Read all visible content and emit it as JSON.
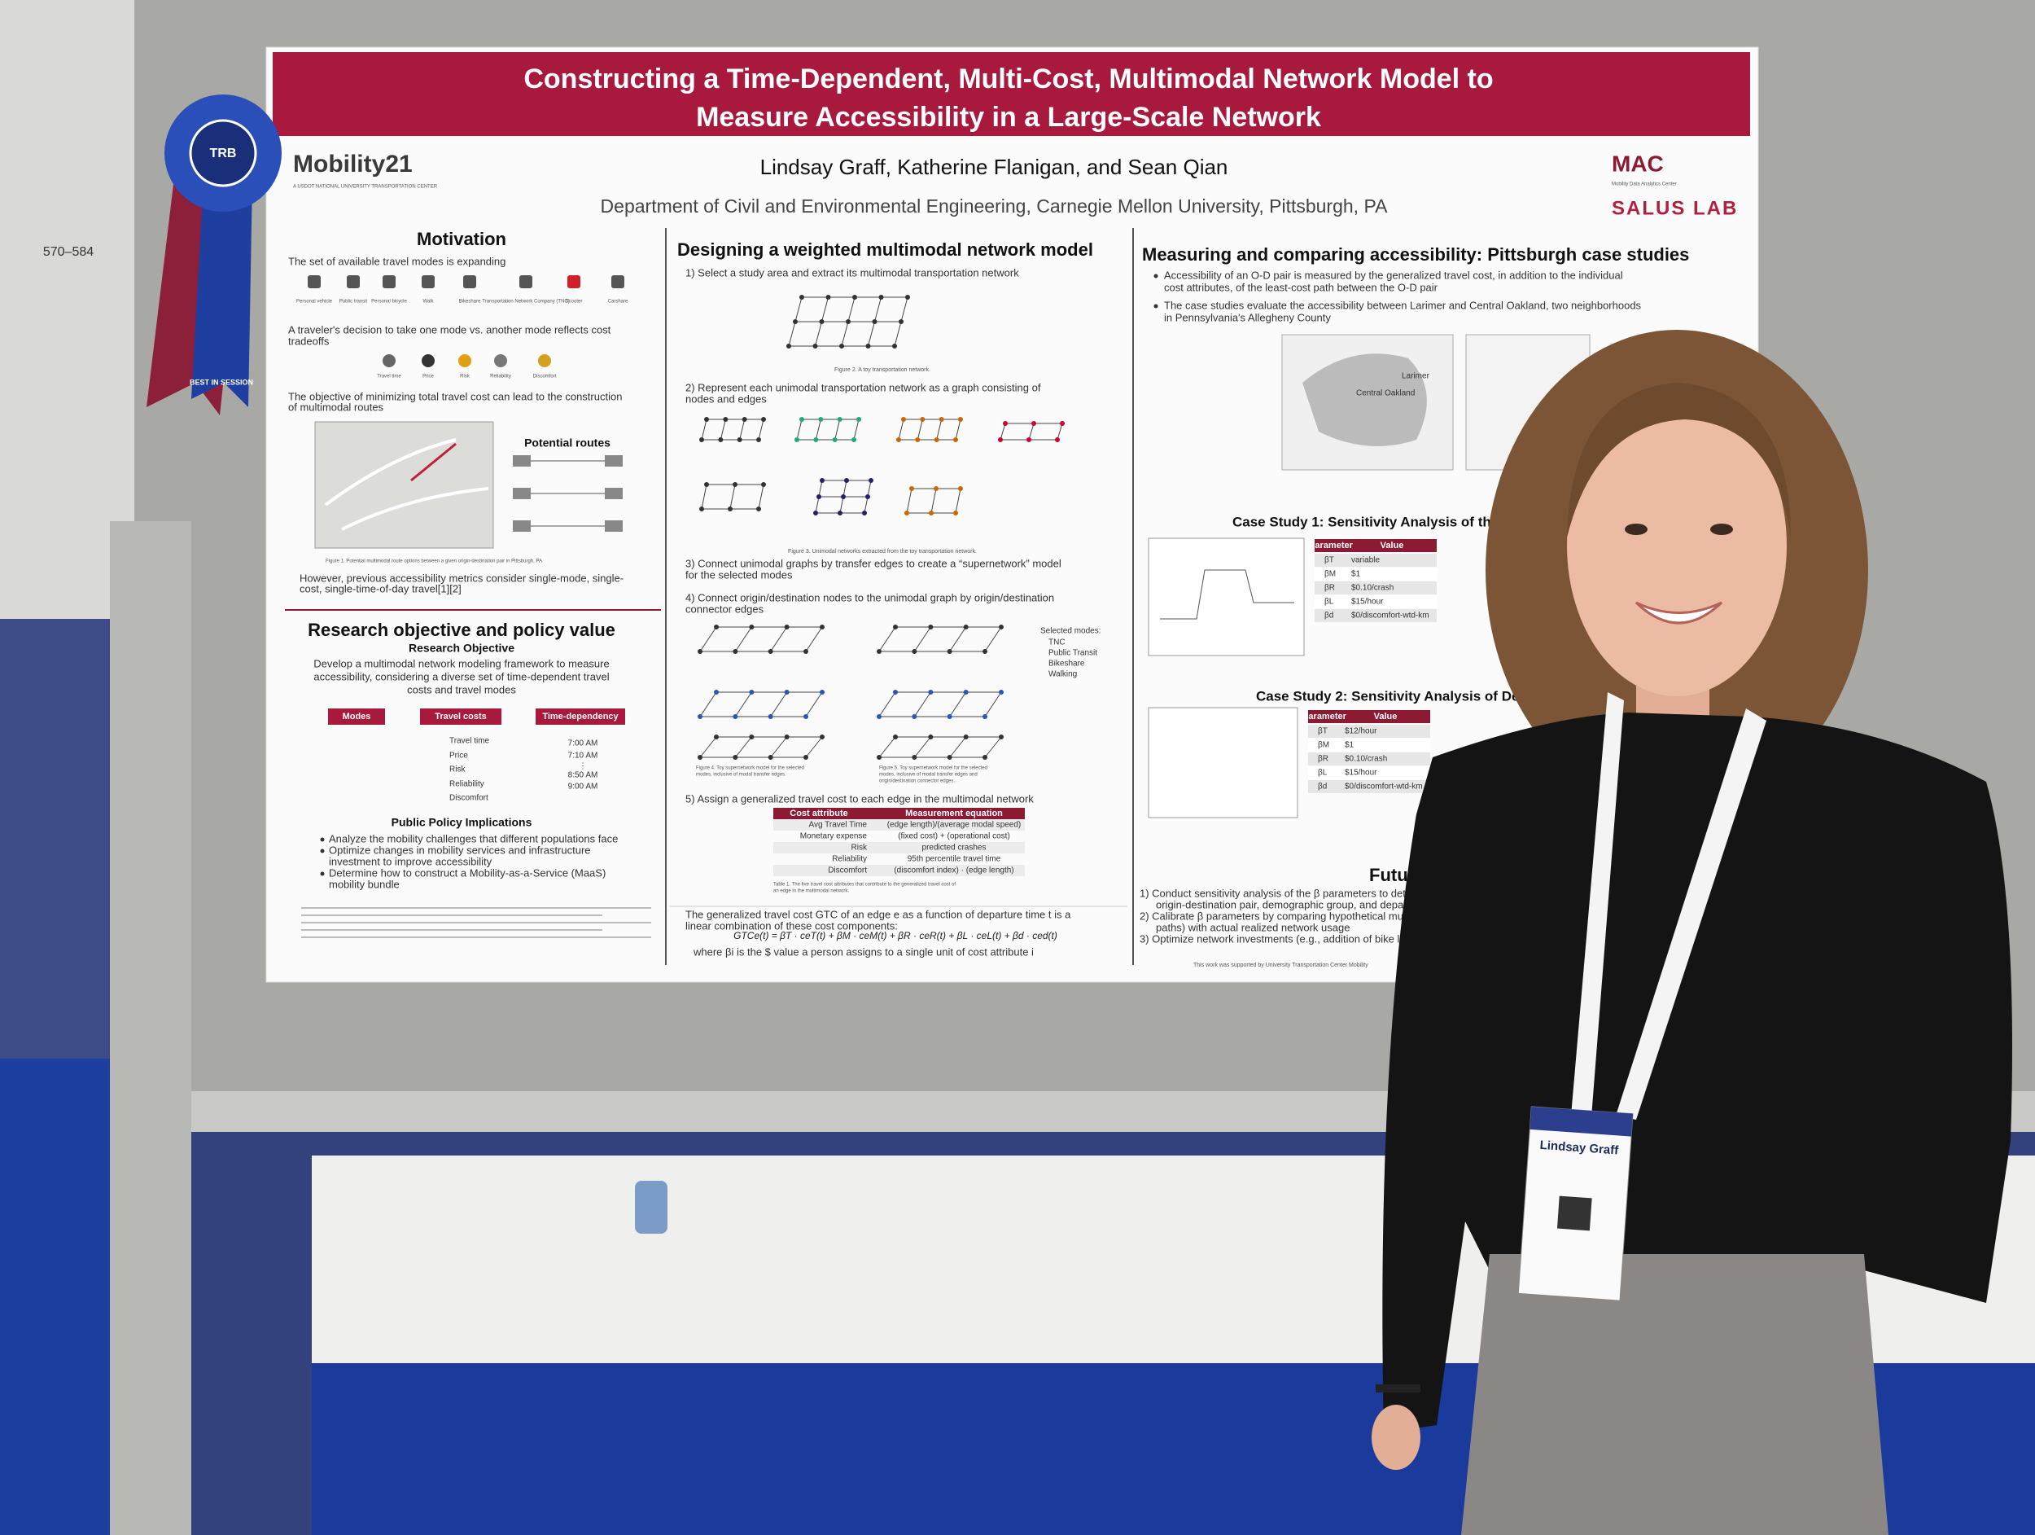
{
  "poster": {
    "title": [
      "Constructing a Time-Dependent, Multi-Cost, Multimodal Network Model to",
      "Measure Accessibility in a Large-Scale Network"
    ],
    "authors": "Lindsay Graff, Katherine Flanigan, and Sean Qian",
    "affiliation": "Department of Civil and Environmental Engineering, Carnegie Mellon University, Pittsburgh, PA",
    "logos": {
      "mobility21": "Mobility21",
      "mobility21_sub": "A USDOT NATIONAL UNIVERSITY TRANSPORTATION CENTER",
      "mac": "MAC",
      "mac_sub": "Mobility Data Analytics Center",
      "salus": "SALUS LAB"
    },
    "motivation": {
      "heading": "Motivation",
      "intro": "The set of available travel modes is expanding",
      "modes": [
        "Personal vehicle",
        "Public transit",
        "Personal bicycle",
        "Walk",
        "Bikeshare",
        "Transportation Network Company (TNC)",
        "Scooter",
        "Carshare"
      ],
      "tradeoff": [
        "A traveler's decision to take one mode vs. another mode reflects cost",
        "tradeoffs"
      ],
      "costs": [
        "Travel time",
        "Price",
        "Risk",
        "Reliability",
        "Discomfort"
      ],
      "objective": [
        "The objective of minimizing total travel cost can lead to the construction",
        "of multimodal routes"
      ],
      "potential_routes": "Potential routes",
      "figure1": "Figure 1. Potential multimodal route options between a given origin-destination pair in Pittsburgh, PA",
      "however": [
        "However, previous accessibility metrics consider single-mode, single-",
        "cost, single-time-of-day travel[1][2]"
      ]
    },
    "research": {
      "heading": "Research objective and policy value",
      "objective_heading": "Research Objective",
      "objective": [
        "Develop a multimodal network modeling framework to measure",
        "accessibility, considering a diverse set of time-dependent travel",
        "costs and travel modes"
      ],
      "table_headers": [
        "Modes",
        "Travel costs",
        "Time-dependency"
      ],
      "costs": [
        "Travel time",
        "Price",
        "Risk",
        "Reliability",
        "Discomfort"
      ],
      "times": [
        "7:00 AM",
        "7:10 AM",
        "⋮",
        "8:50 AM",
        "9:00 AM"
      ],
      "policy_heading": "Public Policy Implications",
      "policy": [
        [
          "Analyze the mobility challenges that different populations face"
        ],
        [
          "Optimize changes in mobility services and infrastructure",
          "investment to improve accessibility"
        ],
        [
          "Determine how to construct a Mobility-as-a-Service (MaaS)",
          "mobility bundle"
        ]
      ]
    },
    "design": {
      "heading": "Designing a weighted multimodal network model",
      "step1": "1)  Select a study area and extract its multimodal transportation network",
      "figure2": "Figure 2. A toy transportation network.",
      "step2": [
        "2)  Represent each unimodal transportation network as a graph consisting of",
        "nodes and edges"
      ],
      "figure3": "Figure 3. Unimodal networks extracted from the toy transportation network.",
      "step3": [
        "3)  Connect unimodal graphs by transfer edges to create a “supernetwork” model",
        "for the selected modes"
      ],
      "step4": [
        "4)  Connect origin/destination nodes to the unimodal graph by origin/destination",
        "connector edges"
      ],
      "selected_modes_heading": "Selected modes:",
      "selected_modes": [
        "TNC",
        "Public Transit",
        "Bikeshare",
        "Walking"
      ],
      "figure4": [
        "Figure 4. Toy supernetwork model for the selected",
        "modes, inclusive of modal transfer edges."
      ],
      "figure5": [
        "Figure 5. Toy supernetwork model for the selected",
        "modes, inclusive of modal transfer edges and",
        "origin/destination connector edges."
      ],
      "step5": "5)  Assign a generalized travel cost to each edge in the multimodal network",
      "table_headers": [
        "Cost attribute",
        "Measurement equation"
      ],
      "table_rows": [
        [
          "Avg Travel Time",
          "(edge length)/(average modal speed)"
        ],
        [
          "Monetary expense",
          "(fixed cost) + (operational cost)"
        ],
        [
          "Risk",
          "predicted crashes"
        ],
        [
          "Reliability",
          "95th percentile travel time"
        ],
        [
          "Discomfort",
          "(discomfort index) · (edge length)"
        ]
      ],
      "table1": [
        "Table 1. The five travel cost attributes that contribute to the generalized travel cost of",
        "an edge in the multimodal network."
      ],
      "gtc_text": [
        "The generalized travel cost GTC of an edge e as a function of departure time t is a",
        "linear combination of these cost components:"
      ],
      "formula": "GTCe(t) = βT · ceT(t) + βM · ceM(t) + βR · ceR(t) + βL · ceL(t) + βd · ced(t)",
      "where": "where βi is the $ value a person assigns to a single unit of cost attribute i"
    },
    "case": {
      "heading": "Measuring and comparing accessibility: Pittsburgh case studies",
      "bullets": [
        [
          "Accessibility of an O-D pair is measured by the generalized travel cost, in addition to the individual",
          "cost attributes, of the least-cost path between the O-D pair"
        ],
        [
          "The case studies evaluate the accessibility between Larimer and Central Oakland, two neighborhoods",
          "in Pennsylvania's Allegheny County"
        ]
      ],
      "map_labels": [
        "Larimer",
        "Central Oakland"
      ],
      "cs1_heading": "Case Study 1: Sensitivity Analysis of the Value",
      "param_headers": [
        "Parameter",
        "Value"
      ],
      "cs1_params": [
        [
          "βT",
          "variable"
        ],
        [
          "βM",
          "$1"
        ],
        [
          "βR",
          "$0.10/crash"
        ],
        [
          "βL",
          "$15/hour"
        ],
        [
          "βd",
          "$0/discomfort-wtd-km"
        ]
      ],
      "cs2_heading": "Case Study 2: Sensitivity Analysis of De",
      "cs2_params": [
        [
          "βT",
          "$12/hour"
        ],
        [
          "βM",
          "$1"
        ],
        [
          "βR",
          "$0.10/crash"
        ],
        [
          "βL",
          "$15/hour"
        ],
        [
          "βd",
          "$0/discomfort-wtd-km"
        ]
      ],
      "future_heading": "Future",
      "future": [
        "1)  Conduct sensitivity analysis of the β parameters to deter",
        "origin-destination pair, demographic group, and departu",
        "2)  Calibrate β parameters by comparing hypothetical multim",
        "paths) with actual realized network usage",
        "3)  Optimize network investments (e.g., addition of bike lane"
      ],
      "support": "This work was supported by University Transportation Center Mobility"
    }
  },
  "ribbon": {
    "center": "TRB",
    "tail": "BEST IN SESSION"
  },
  "sign": "570–584",
  "badge": {
    "name": "Lindsay Graff"
  }
}
